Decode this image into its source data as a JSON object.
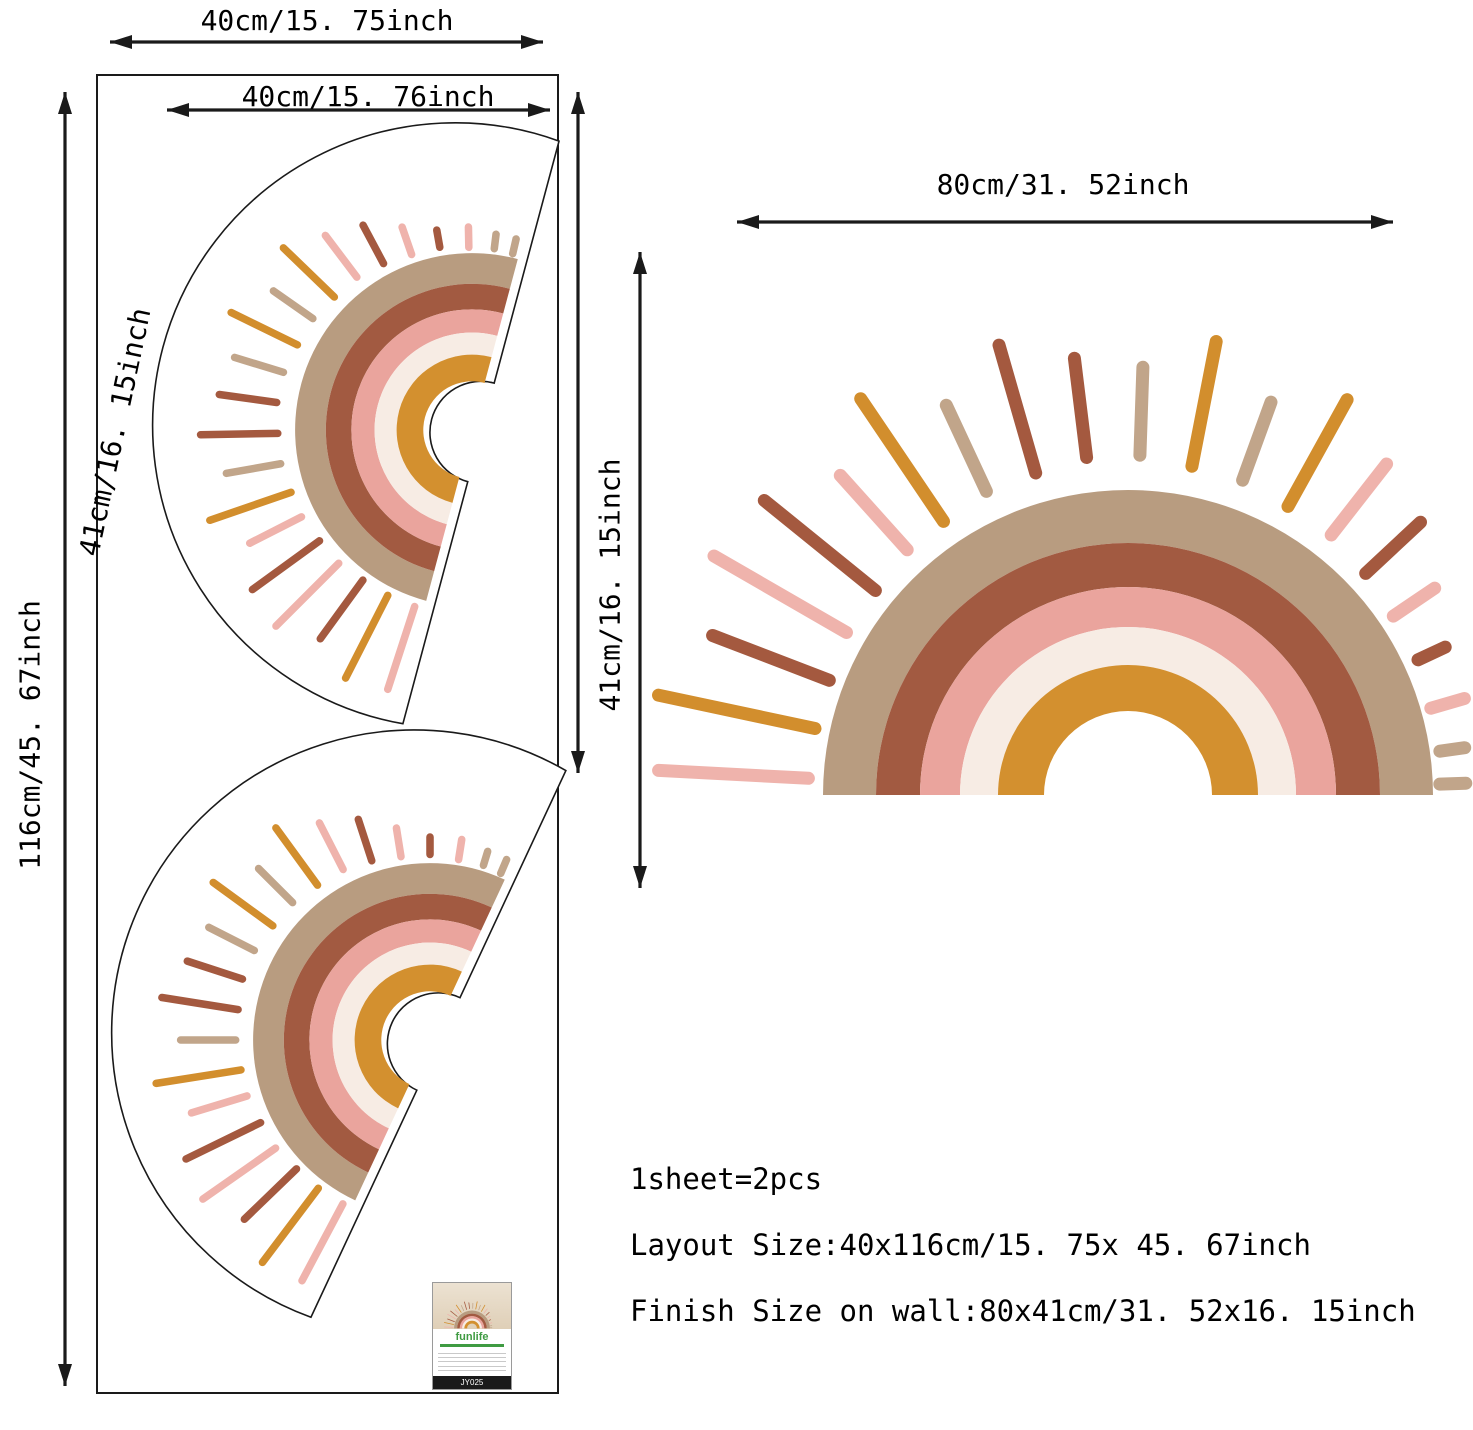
{
  "labels": {
    "sheet_width": "40cm/15. 75inch",
    "decal_width": "40cm/15. 76inch",
    "decal_height": "41cm/16. 15inch",
    "sheet_height": "116cm/45. 67inch",
    "finish_width": "80cm/31. 52inch",
    "finish_height": "41cm/16. 15inch"
  },
  "notes": {
    "pieces": "1sheet=2pcs",
    "layout_size": "Layout Size:40x116cm/15. 75x 45. 67inch",
    "finish_size": "Finish Size on wall:80x41cm/31. 52x16. 15inch"
  },
  "product_label": {
    "brand": "funlife",
    "code": "JY025"
  },
  "palette": {
    "outline": "#1a1a1a",
    "tan": "#b89c80",
    "sienna": "#a25a41",
    "pink": "#eaa49d",
    "cream": "#f7ece4",
    "orange": "#d3902f",
    "ray_pink": "#efb3ac",
    "ray_taupe": "#c1a58a",
    "ray_mustard": "#d28e2d",
    "ray_sienna": "#a4593f"
  },
  "sun": {
    "outline": {
      "radius": 520,
      "arch": 88,
      "drop": 16
    },
    "bands": [
      {
        "color": "tan",
        "outer": 305,
        "inner": 252
      },
      {
        "color": "sienna",
        "outer": 252,
        "inner": 208
      },
      {
        "color": "pink",
        "outer": 208,
        "inner": 168
      },
      {
        "color": "cream",
        "outer": 168,
        "inner": 130
      },
      {
        "color": "orange",
        "outer": 130,
        "inner": 84
      }
    ],
    "rays": [
      {
        "angle": 177,
        "r1": 320,
        "r2": 470,
        "color": "ray_pink"
      },
      {
        "angle": 168,
        "r1": 320,
        "r2": 480,
        "color": "ray_mustard"
      },
      {
        "angle": 159,
        "r1": 320,
        "r2": 445,
        "color": "ray_sienna"
      },
      {
        "angle": 150,
        "r1": 325,
        "r2": 478,
        "color": "ray_pink"
      },
      {
        "angle": 141,
        "r1": 325,
        "r2": 468,
        "color": "ray_sienna"
      },
      {
        "angle": 132,
        "r1": 330,
        "r2": 430,
        "color": "ray_pink"
      },
      {
        "angle": 124,
        "r1": 330,
        "r2": 478,
        "color": "ray_mustard"
      },
      {
        "angle": 115,
        "r1": 335,
        "r2": 430,
        "color": "ray_taupe"
      },
      {
        "angle": 106,
        "r1": 335,
        "r2": 468,
        "color": "ray_sienna"
      },
      {
        "angle": 97,
        "r1": 340,
        "r2": 440,
        "color": "ray_sienna"
      },
      {
        "angle": 88,
        "r1": 340,
        "r2": 428,
        "color": "ray_taupe"
      },
      {
        "angle": 79,
        "r1": 335,
        "r2": 462,
        "color": "ray_mustard"
      },
      {
        "angle": 70,
        "r1": 335,
        "r2": 418,
        "color": "ray_taupe"
      },
      {
        "angle": 61,
        "r1": 330,
        "r2": 452,
        "color": "ray_mustard"
      },
      {
        "angle": 52,
        "r1": 330,
        "r2": 420,
        "color": "ray_pink"
      },
      {
        "angle": 43,
        "r1": 325,
        "r2": 400,
        "color": "ray_sienna"
      },
      {
        "angle": 34,
        "r1": 320,
        "r2": 370,
        "color": "ray_pink"
      },
      {
        "angle": 25,
        "r1": 320,
        "r2": 350,
        "color": "ray_sienna"
      },
      {
        "angle": 16,
        "r1": 315,
        "r2": 350,
        "color": "ray_pink"
      },
      {
        "angle": 8,
        "r1": 315,
        "r2": 340,
        "color": "ray_taupe"
      },
      {
        "angle": 2,
        "r1": 312,
        "r2": 338,
        "color": "ray_taupe"
      }
    ]
  }
}
